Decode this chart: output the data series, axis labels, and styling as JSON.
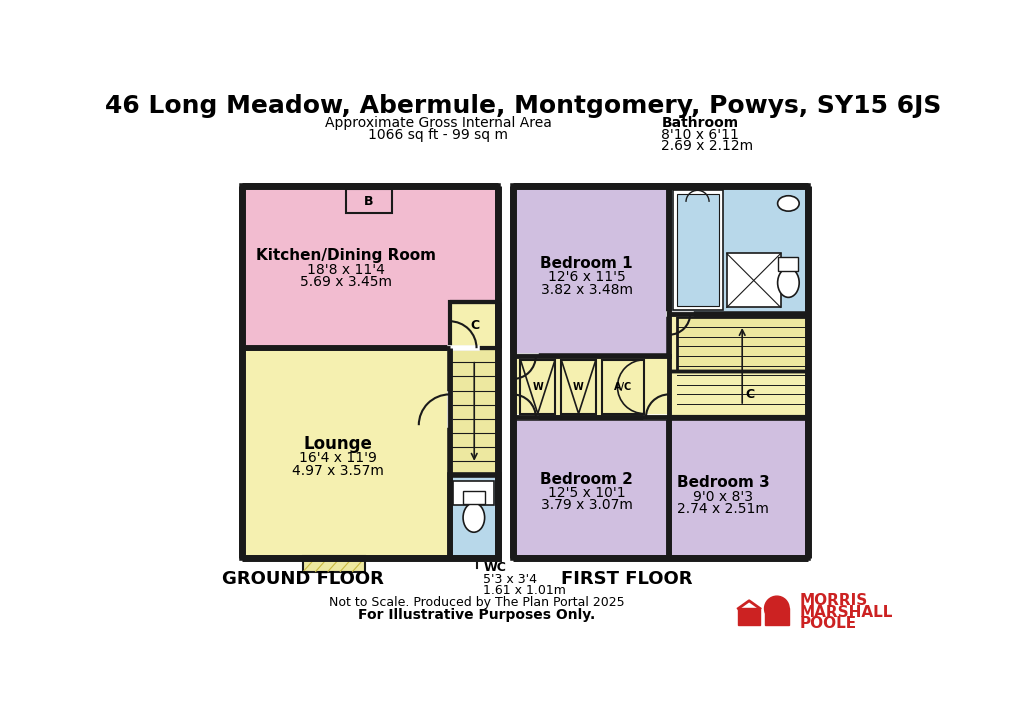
{
  "title": "46 Long Meadow, Abermule, Montgomery, Powys, SY15 6JS",
  "subtitle1": "Approximate Gross Internal Area",
  "subtitle2": "1066 sq ft - 99 sq m",
  "bathroom_label": "Bathroom",
  "bathroom_dim1": "8'10 x 6'11",
  "bathroom_dim2": "2.69 x 2.12m",
  "ground_floor_label": "GROUND FLOOR",
  "first_floor_label": "FIRST FLOOR",
  "footer1": "Not to Scale. Produced by The Plan Portal 2025",
  "footer2": "For Illustrative Purposes Only.",
  "bg_color": "#ffffff",
  "wall_color": "#1a1a1a",
  "pink_color": "#f2bcd0",
  "yellow_color": "#f5f0b0",
  "blue_color": "#b8d8ea",
  "purple_color": "#d0bfe0",
  "stair_color": "#ede8a0",
  "brand_color": "#cc2222",
  "kitchen_label": "Kitchen/Dining Room",
  "kitchen_dim1": "18'8 x 11'4",
  "kitchen_dim2": "5.69 x 3.45m",
  "lounge_label": "Lounge",
  "lounge_dim1": "16'4 x 11'9",
  "lounge_dim2": "4.97 x 3.57m",
  "wc_label": "WC",
  "wc_dim1": "5'3 x 3'4",
  "wc_dim2": "1.61 x 1.01m",
  "bed1_label": "Bedroom 1",
  "bed1_dim1": "12'6 x 11'5",
  "bed1_dim2": "3.82 x 3.48m",
  "bed2_label": "Bedroom 2",
  "bed2_dim1": "12'5 x 10'1",
  "bed2_dim2": "3.79 x 3.07m",
  "bed3_label": "Bedroom 3",
  "bed3_dim1": "9'0 x 8'3",
  "bed3_dim2": "2.74 x 2.51m"
}
